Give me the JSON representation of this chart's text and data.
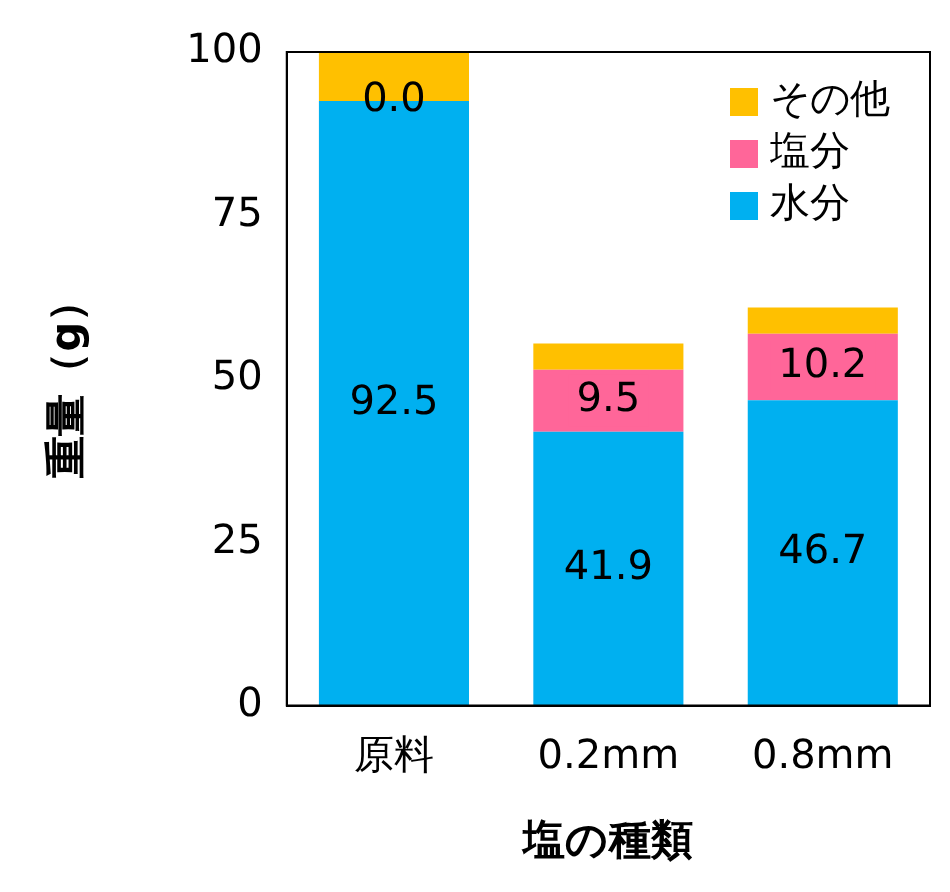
{
  "chart_data": {
    "type": "bar",
    "stacked": true,
    "xlabel": "塩の種類",
    "ylabel": "重量（g）",
    "categories": [
      "原料",
      "0.2mm",
      "0.8mm"
    ],
    "ylim": [
      0,
      100
    ],
    "yticks": [
      0,
      25,
      50,
      75,
      100
    ],
    "grid": false,
    "legend": "top right",
    "series": [
      {
        "name": "水分",
        "color": "#00b0f0",
        "values": [
          92.5,
          41.9,
          46.7
        ],
        "value_labels": [
          "92.5",
          "41.9",
          "46.7"
        ]
      },
      {
        "name": "塩分",
        "color": "#ff6699",
        "values": [
          0.0,
          9.5,
          10.2
        ],
        "value_labels": [
          "0.0",
          "9.5",
          "10.2"
        ]
      },
      {
        "name": "その他",
        "color": "#ffc000",
        "values": [
          7.5,
          4,
          4
        ]
      }
    ]
  }
}
